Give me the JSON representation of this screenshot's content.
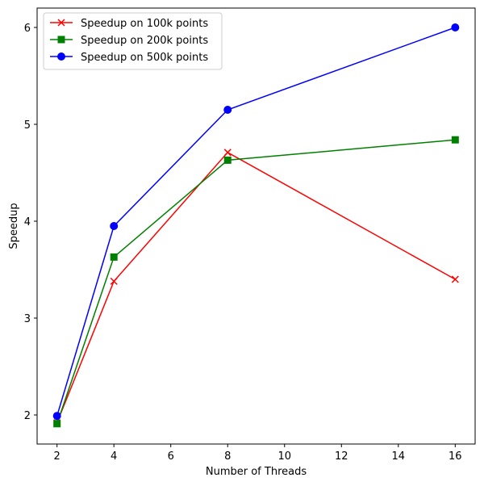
{
  "chart_data": {
    "type": "line",
    "title": "",
    "xlabel": "Number of Threads",
    "ylabel": "Speedup",
    "xlim": [
      1.3,
      16.7
    ],
    "ylim": [
      1.7,
      6.2
    ],
    "xticks": [
      2,
      4,
      6,
      8,
      10,
      12,
      14,
      16
    ],
    "yticks": [
      2,
      3,
      4,
      5,
      6
    ],
    "grid": false,
    "legend_position": "top-left",
    "x": [
      2,
      4,
      8,
      16
    ],
    "series": [
      {
        "name": "Speedup on 100k points",
        "color": "#ff0000",
        "marker": "x",
        "values": [
          1.92,
          3.38,
          4.71,
          3.4
        ]
      },
      {
        "name": "Speedup on 200k points",
        "color": "#008000",
        "marker": "square",
        "values": [
          1.91,
          3.63,
          4.63,
          4.84
        ]
      },
      {
        "name": "Speedup on 500k points",
        "color": "#0000ff",
        "marker": "circle",
        "values": [
          1.99,
          3.95,
          5.15,
          6.0
        ]
      }
    ]
  }
}
